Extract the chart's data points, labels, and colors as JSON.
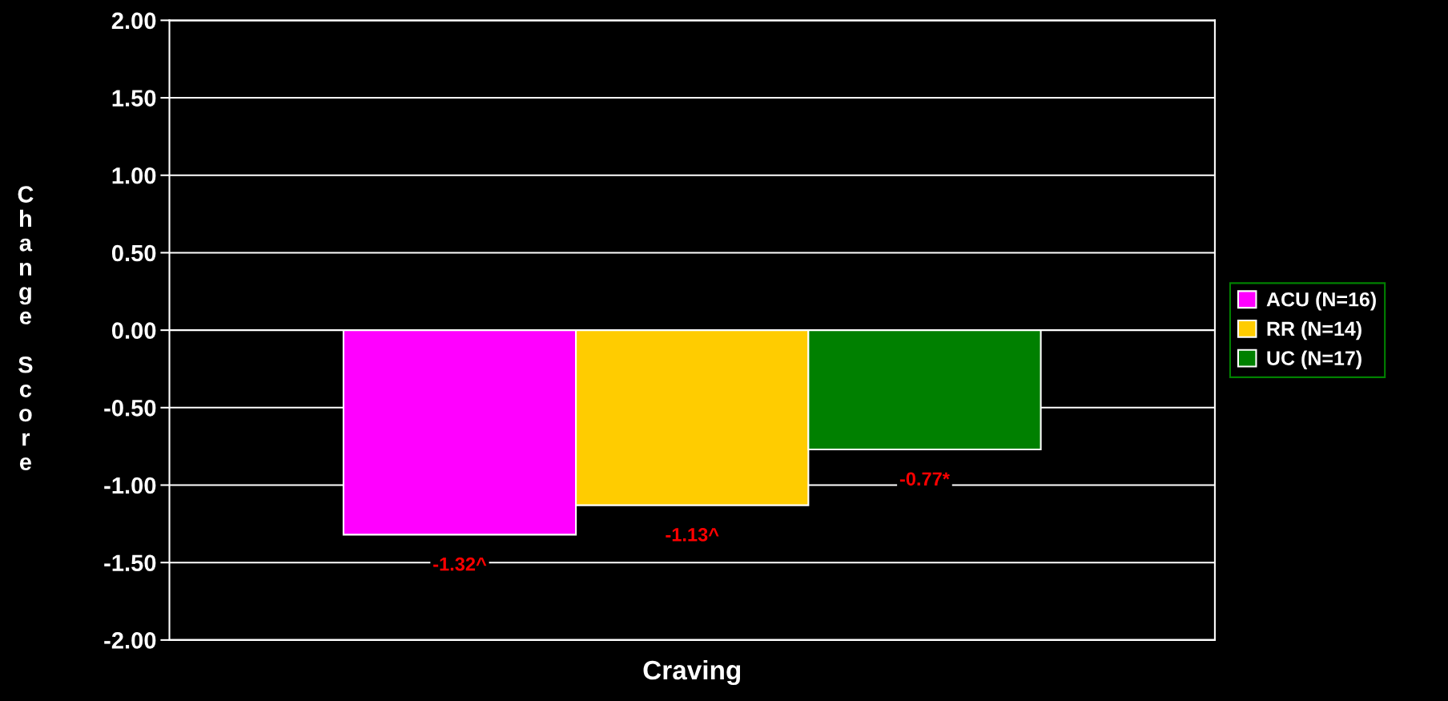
{
  "chart_data": {
    "type": "bar",
    "ylabel": "Change Score",
    "categories": [
      "Craving"
    ],
    "series": [
      {
        "name": "ACU (N=16)",
        "color": "#ff00ff",
        "values": [
          -1.32
        ],
        "value_labels": [
          "-1.32^"
        ]
      },
      {
        "name": "RR (N=14)",
        "color": "#ffcc00",
        "values": [
          -1.13
        ],
        "value_labels": [
          "-1.13^"
        ]
      },
      {
        "name": "UC (N=17)",
        "color": "#008000",
        "values": [
          -0.77
        ],
        "value_labels": [
          "-0.77*"
        ]
      }
    ],
    "ylim": [
      -2,
      2
    ],
    "yticks": [
      {
        "value": -2,
        "label": "-2.00"
      },
      {
        "value": -1.5,
        "label": "-1.50"
      },
      {
        "value": -1,
        "label": "-1.00"
      },
      {
        "value": -0.5,
        "label": "-0.50"
      },
      {
        "value": 0,
        "label": "0.00"
      },
      {
        "value": 0.5,
        "label": "0.50"
      },
      {
        "value": 1,
        "label": "1.00"
      },
      {
        "value": 1.5,
        "label": "1.50"
      },
      {
        "value": 2,
        "label": "2.00"
      }
    ],
    "grid": "y",
    "legend": "right"
  }
}
